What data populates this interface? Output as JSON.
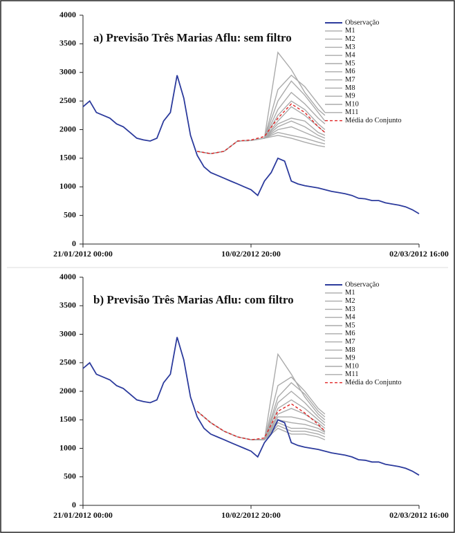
{
  "chart_data": [
    {
      "type": "line",
      "title": "a) Previsão Três Marias Aflu: sem filtro",
      "legend": "upper right",
      "xlim": [
        0,
        1000
      ],
      "xticks": [
        {
          "value": 0,
          "label": "21/01/2012  00:00"
        },
        {
          "value": 500,
          "label": "10/02/2012 20:00"
        },
        {
          "value": 1000,
          "label": "02/03/2012 16:00"
        }
      ],
      "ylim": [
        0,
        4000
      ],
      "yticks": [
        0,
        500,
        1000,
        1500,
        2000,
        2500,
        3000,
        3500,
        4000
      ],
      "series": [
        {
          "name": "Observação",
          "color": "#2b3a9c",
          "style": "solid",
          "x": [
            0,
            20,
            40,
            60,
            80,
            100,
            120,
            140,
            160,
            180,
            200,
            220,
            240,
            260,
            280,
            300,
            320,
            340,
            360,
            380,
            400,
            420,
            440,
            460,
            480,
            500,
            520,
            540,
            560,
            580,
            600,
            620,
            640,
            660,
            680,
            700,
            720,
            740,
            760,
            780,
            800,
            820,
            840,
            860,
            880,
            900,
            920,
            940,
            960,
            980,
            1000
          ],
          "values": [
            2400,
            2500,
            2300,
            2250,
            2200,
            2100,
            2050,
            1950,
            1850,
            1820,
            1800,
            1850,
            2150,
            2300,
            2950,
            2550,
            1900,
            1550,
            1350,
            1250,
            1200,
            1150,
            1100,
            1050,
            1000,
            950,
            850,
            1100,
            1250,
            1500,
            1450,
            1100,
            1050,
            1020,
            1000,
            980,
            950,
            920,
            900,
            880,
            850,
            800,
            790,
            760,
            760,
            720,
            700,
            680,
            650,
            600,
            530
          ]
        },
        {
          "name": "M1",
          "color": "#aaaaaa",
          "style": "solid",
          "x": [
            340,
            380,
            420,
            460,
            500,
            540,
            580,
            620,
            660,
            700,
            720
          ],
          "values": [
            1620,
            1580,
            1620,
            1800,
            1810,
            1850,
            3350,
            3050,
            2650,
            2350,
            2250
          ]
        },
        {
          "name": "M2",
          "color": "#aaaaaa",
          "style": "solid",
          "x": [
            340,
            380,
            420,
            460,
            500,
            540,
            580,
            620,
            660,
            700,
            720
          ],
          "values": [
            1620,
            1580,
            1620,
            1800,
            1810,
            1850,
            2700,
            2950,
            2750,
            2450,
            2300
          ]
        },
        {
          "name": "M3",
          "color": "#aaaaaa",
          "style": "solid",
          "x": [
            340,
            380,
            420,
            460,
            500,
            540,
            580,
            620,
            660,
            700,
            720
          ],
          "values": [
            1620,
            1580,
            1620,
            1800,
            1810,
            1850,
            2500,
            2850,
            2600,
            2300,
            2150
          ]
        },
        {
          "name": "M4",
          "color": "#aaaaaa",
          "style": "solid",
          "x": [
            340,
            380,
            420,
            460,
            500,
            540,
            580,
            620,
            660,
            700,
            720
          ],
          "values": [
            1620,
            1580,
            1620,
            1800,
            1810,
            1850,
            2350,
            2650,
            2450,
            2200,
            2100
          ]
        },
        {
          "name": "M5",
          "color": "#aaaaaa",
          "style": "solid",
          "x": [
            340,
            380,
            420,
            460,
            500,
            540,
            580,
            620,
            660,
            700,
            720
          ],
          "values": [
            1620,
            1580,
            1620,
            1800,
            1810,
            1850,
            2250,
            2500,
            2350,
            2100,
            2000
          ]
        },
        {
          "name": "M6",
          "color": "#aaaaaa",
          "style": "solid",
          "x": [
            340,
            380,
            420,
            460,
            500,
            540,
            580,
            620,
            660,
            700,
            720
          ],
          "values": [
            1620,
            1580,
            1620,
            1800,
            1810,
            1850,
            2150,
            2400,
            2250,
            2050,
            1950
          ]
        },
        {
          "name": "M7",
          "color": "#aaaaaa",
          "style": "solid",
          "x": [
            340,
            380,
            420,
            460,
            500,
            540,
            580,
            620,
            660,
            700,
            720
          ],
          "values": [
            1620,
            1580,
            1620,
            1800,
            1810,
            1850,
            2100,
            2200,
            2150,
            1950,
            1900
          ]
        },
        {
          "name": "M8",
          "color": "#aaaaaa",
          "style": "solid",
          "x": [
            340,
            380,
            420,
            460,
            500,
            540,
            580,
            620,
            660,
            700,
            720
          ],
          "values": [
            1620,
            1580,
            1620,
            1800,
            1810,
            1850,
            2050,
            2150,
            2050,
            1900,
            1850
          ]
        },
        {
          "name": "M9",
          "color": "#aaaaaa",
          "style": "solid",
          "x": [
            340,
            380,
            420,
            460,
            500,
            540,
            580,
            620,
            660,
            700,
            720
          ],
          "values": [
            1620,
            1580,
            1620,
            1800,
            1810,
            1850,
            2000,
            2050,
            1950,
            1850,
            1800
          ]
        },
        {
          "name": "M10",
          "color": "#aaaaaa",
          "style": "solid",
          "x": [
            340,
            380,
            420,
            460,
            500,
            540,
            580,
            620,
            660,
            700,
            720
          ],
          "values": [
            1620,
            1580,
            1620,
            1800,
            1810,
            1850,
            1950,
            1900,
            1850,
            1780,
            1750
          ]
        },
        {
          "name": "M11",
          "color": "#aaaaaa",
          "style": "solid",
          "x": [
            340,
            380,
            420,
            460,
            500,
            540,
            580,
            620,
            660,
            700,
            720
          ],
          "values": [
            1620,
            1580,
            1620,
            1800,
            1810,
            1850,
            1900,
            1850,
            1780,
            1720,
            1700
          ]
        },
        {
          "name": "Média do Conjunto",
          "color": "#e02020",
          "style": "dashed",
          "x": [
            340,
            380,
            420,
            460,
            500,
            540,
            580,
            620,
            660,
            700,
            720
          ],
          "values": [
            1620,
            1580,
            1620,
            1800,
            1820,
            1880,
            2200,
            2450,
            2300,
            2050,
            1950
          ]
        }
      ]
    },
    {
      "type": "line",
      "title": "b) Previsão Três Marias Aflu: com filtro",
      "legend": "upper right",
      "xlim": [
        0,
        1000
      ],
      "xticks": [
        {
          "value": 0,
          "label": "21/01/2012  00:00"
        },
        {
          "value": 500,
          "label": "10/02/2012 20:00"
        },
        {
          "value": 1000,
          "label": "02/03/2012 16:00"
        }
      ],
      "ylim": [
        0,
        4000
      ],
      "yticks": [
        0,
        500,
        1000,
        1500,
        2000,
        2500,
        3000,
        3500,
        4000
      ],
      "series": [
        {
          "name": "Observação",
          "color": "#2b3a9c",
          "style": "solid",
          "x": [
            0,
            20,
            40,
            60,
            80,
            100,
            120,
            140,
            160,
            180,
            200,
            220,
            240,
            260,
            280,
            300,
            320,
            340,
            360,
            380,
            400,
            420,
            440,
            460,
            480,
            500,
            520,
            540,
            560,
            580,
            600,
            620,
            640,
            660,
            680,
            700,
            720,
            740,
            760,
            780,
            800,
            820,
            840,
            860,
            880,
            900,
            920,
            940,
            960,
            980,
            1000
          ],
          "values": [
            2400,
            2500,
            2300,
            2250,
            2200,
            2100,
            2050,
            1950,
            1850,
            1820,
            1800,
            1850,
            2150,
            2300,
            2950,
            2550,
            1900,
            1550,
            1350,
            1250,
            1200,
            1150,
            1100,
            1050,
            1000,
            950,
            850,
            1100,
            1250,
            1500,
            1450,
            1100,
            1050,
            1020,
            1000,
            980,
            950,
            920,
            900,
            880,
            850,
            800,
            790,
            760,
            760,
            720,
            700,
            680,
            650,
            600,
            530
          ]
        },
        {
          "name": "M1",
          "color": "#aaaaaa",
          "style": "solid",
          "x": [
            340,
            380,
            420,
            460,
            500,
            540,
            580,
            620,
            660,
            700,
            720
          ],
          "values": [
            1650,
            1450,
            1300,
            1200,
            1150,
            1150,
            2650,
            2300,
            1900,
            1600,
            1500
          ]
        },
        {
          "name": "M2",
          "color": "#aaaaaa",
          "style": "solid",
          "x": [
            340,
            380,
            420,
            460,
            500,
            540,
            580,
            620,
            660,
            700,
            720
          ],
          "values": [
            1650,
            1450,
            1300,
            1200,
            1150,
            1150,
            2100,
            2250,
            2000,
            1700,
            1600
          ]
        },
        {
          "name": "M3",
          "color": "#aaaaaa",
          "style": "solid",
          "x": [
            340,
            380,
            420,
            460,
            500,
            540,
            580,
            620,
            660,
            700,
            720
          ],
          "values": [
            1650,
            1450,
            1300,
            1200,
            1150,
            1150,
            1900,
            2150,
            1950,
            1650,
            1550
          ]
        },
        {
          "name": "M4",
          "color": "#aaaaaa",
          "style": "solid",
          "x": [
            340,
            380,
            420,
            460,
            500,
            540,
            580,
            620,
            660,
            700,
            720
          ],
          "values": [
            1650,
            1450,
            1300,
            1200,
            1150,
            1150,
            1800,
            2000,
            1800,
            1550,
            1450
          ]
        },
        {
          "name": "M5",
          "color": "#aaaaaa",
          "style": "solid",
          "x": [
            340,
            380,
            420,
            460,
            500,
            540,
            580,
            620,
            660,
            700,
            720
          ],
          "values": [
            1650,
            1450,
            1300,
            1200,
            1150,
            1150,
            1700,
            1850,
            1700,
            1500,
            1400
          ]
        },
        {
          "name": "M6",
          "color": "#aaaaaa",
          "style": "solid",
          "x": [
            340,
            380,
            420,
            460,
            500,
            540,
            580,
            620,
            660,
            700,
            720
          ],
          "values": [
            1650,
            1450,
            1300,
            1200,
            1150,
            1150,
            1600,
            1700,
            1600,
            1450,
            1350
          ]
        },
        {
          "name": "M7",
          "color": "#aaaaaa",
          "style": "solid",
          "x": [
            340,
            380,
            420,
            460,
            500,
            540,
            580,
            620,
            660,
            700,
            720
          ],
          "values": [
            1650,
            1450,
            1300,
            1200,
            1150,
            1150,
            1550,
            1550,
            1500,
            1400,
            1300
          ]
        },
        {
          "name": "M8",
          "color": "#aaaaaa",
          "style": "solid",
          "x": [
            340,
            380,
            420,
            460,
            500,
            540,
            580,
            620,
            660,
            700,
            720
          ],
          "values": [
            1650,
            1450,
            1300,
            1200,
            1150,
            1150,
            1500,
            1450,
            1420,
            1350,
            1280
          ]
        },
        {
          "name": "M9",
          "color": "#aaaaaa",
          "style": "solid",
          "x": [
            340,
            380,
            420,
            460,
            500,
            540,
            580,
            620,
            660,
            700,
            720
          ],
          "values": [
            1650,
            1450,
            1300,
            1200,
            1150,
            1150,
            1450,
            1350,
            1350,
            1300,
            1250
          ]
        },
        {
          "name": "M10",
          "color": "#aaaaaa",
          "style": "solid",
          "x": [
            340,
            380,
            420,
            460,
            500,
            540,
            580,
            620,
            660,
            700,
            720
          ],
          "values": [
            1650,
            1450,
            1300,
            1200,
            1150,
            1150,
            1400,
            1300,
            1300,
            1250,
            1200
          ]
        },
        {
          "name": "M11",
          "color": "#aaaaaa",
          "style": "solid",
          "x": [
            340,
            380,
            420,
            460,
            500,
            540,
            580,
            620,
            660,
            700,
            720
          ],
          "values": [
            1650,
            1450,
            1300,
            1200,
            1150,
            1150,
            1350,
            1250,
            1250,
            1200,
            1150
          ]
        },
        {
          "name": "Média do Conjunto",
          "color": "#e02020",
          "style": "dashed",
          "x": [
            340,
            380,
            420,
            460,
            500,
            540,
            580,
            620,
            660,
            700,
            720
          ],
          "values": [
            1650,
            1450,
            1300,
            1200,
            1150,
            1180,
            1650,
            1780,
            1620,
            1420,
            1300
          ]
        }
      ]
    }
  ]
}
